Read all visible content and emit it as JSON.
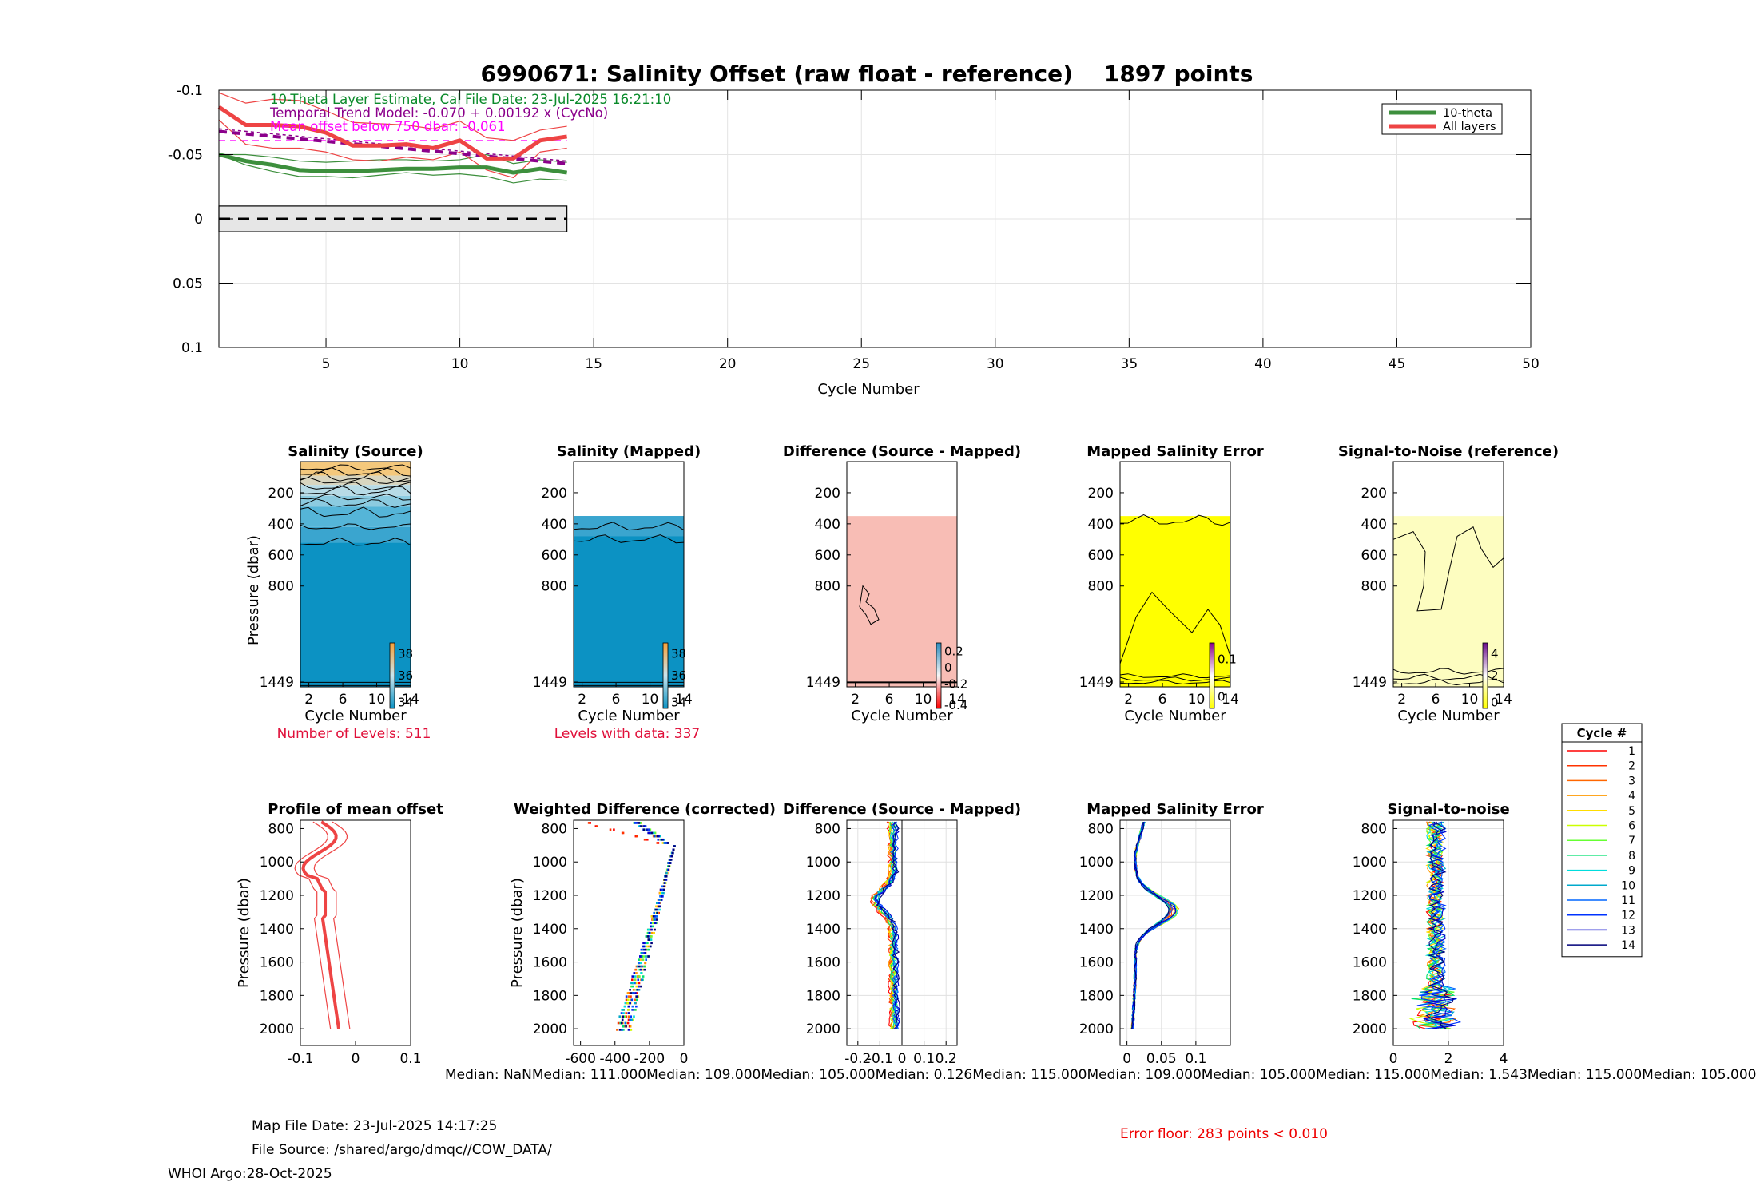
{
  "title": "6990671: Salinity Offset (raw float - reference)    1897 points",
  "top_panel": {
    "chart_data": {
      "type": "line",
      "xlabel": "Cycle Number",
      "xlim": [
        1,
        50
      ],
      "xticks": [
        5,
        10,
        15,
        20,
        25,
        30,
        35,
        40,
        45,
        50
      ],
      "ylim": [
        -0.1,
        0.1
      ],
      "y_reversed": true,
      "yticks": [
        -0.1,
        -0.05,
        0,
        0.05,
        0.1
      ],
      "ytick_labels": [
        "-0.1",
        "-0.05",
        "0",
        "0.05",
        "0.1"
      ],
      "legend": {
        "position": "top-right",
        "entries": [
          "10-theta",
          "All layers"
        ]
      },
      "annotations": [
        "10-Theta Layer Estimate, Cal File Date: 23-Jul-2025 16:21:10",
        "Temporal Trend Model: -0.070 + 0.00192 x (CycNo)",
        "Mean offset below 750 dbar: -0.061"
      ],
      "annotation_colors": [
        "#0a8a2a",
        "#8b008b",
        "#ff00ff"
      ],
      "zero_box": {
        "x": [
          1,
          14
        ],
        "y": [
          -0.01,
          0.01
        ]
      },
      "mean_offset_value": -0.061,
      "series": [
        {
          "name": "10-theta",
          "color": "#3d8f3d",
          "width": 5,
          "x": [
            1,
            2,
            3,
            4,
            5,
            6,
            7,
            8,
            9,
            10,
            11,
            12,
            13,
            14
          ],
          "values": [
            -0.05,
            -0.045,
            -0.042,
            -0.038,
            -0.037,
            -0.037,
            -0.038,
            -0.039,
            -0.039,
            -0.04,
            -0.04,
            -0.036,
            -0.039,
            -0.036
          ]
        },
        {
          "name": "10-theta upper",
          "color": "#3d8f3d",
          "width": 1.2,
          "x": [
            1,
            2,
            3,
            4,
            5,
            6,
            7,
            8,
            9,
            10,
            11,
            12,
            13,
            14
          ],
          "values": [
            -0.05,
            -0.05,
            -0.048,
            -0.045,
            -0.044,
            -0.045,
            -0.046,
            -0.046,
            -0.045,
            -0.046,
            -0.05,
            -0.043,
            -0.046,
            -0.044
          ]
        },
        {
          "name": "10-theta lower",
          "color": "#3d8f3d",
          "width": 1.2,
          "x": [
            1,
            2,
            3,
            4,
            5,
            6,
            7,
            8,
            9,
            10,
            11,
            12,
            13,
            14
          ],
          "values": [
            -0.05,
            -0.042,
            -0.037,
            -0.033,
            -0.033,
            -0.032,
            -0.034,
            -0.036,
            -0.034,
            -0.035,
            -0.033,
            -0.028,
            -0.031,
            -0.03
          ]
        },
        {
          "name": "All layers",
          "color": "#ee4444",
          "width": 5,
          "x": [
            1,
            2,
            3,
            4,
            5,
            6,
            7,
            8,
            9,
            10,
            11,
            12,
            13,
            14
          ],
          "values": [
            -0.087,
            -0.073,
            -0.073,
            -0.072,
            -0.067,
            -0.057,
            -0.057,
            -0.058,
            -0.055,
            -0.061,
            -0.047,
            -0.047,
            -0.061,
            -0.064
          ]
        },
        {
          "name": "All layers upper",
          "color": "#ee4444",
          "width": 1.2,
          "x": [
            1,
            2,
            3,
            4,
            5,
            6,
            7,
            8,
            9,
            10,
            11,
            12,
            13,
            14
          ],
          "values": [
            -0.098,
            -0.09,
            -0.093,
            -0.092,
            -0.084,
            -0.075,
            -0.074,
            -0.073,
            -0.07,
            -0.076,
            -0.063,
            -0.061,
            -0.069,
            -0.072
          ]
        },
        {
          "name": "All layers lower",
          "color": "#ee4444",
          "width": 1.2,
          "x": [
            1,
            2,
            3,
            4,
            5,
            6,
            7,
            8,
            9,
            10,
            11,
            12,
            13,
            14
          ],
          "values": [
            -0.077,
            -0.058,
            -0.055,
            -0.055,
            -0.052,
            -0.046,
            -0.045,
            -0.048,
            -0.046,
            -0.052,
            -0.038,
            -0.032,
            -0.052,
            -0.055
          ]
        },
        {
          "name": "Temporal trend",
          "color": "#8b008b",
          "width": 4,
          "dash": "10,7",
          "x": [
            1,
            14
          ],
          "values": [
            -0.068,
            -0.043
          ]
        },
        {
          "name": "Trend bound",
          "color": "#8b008b",
          "width": 1.5,
          "dash": "4,4",
          "x": [
            1,
            14
          ],
          "values": [
            -0.07,
            -0.045
          ]
        }
      ]
    }
  },
  "middle_panels": {
    "ylabel": "Pressure (dbar)",
    "xlabel": "Cycle Number",
    "yticks": [
      200,
      400,
      600,
      800,
      1449
    ],
    "ytick_labels": [
      "200",
      "400",
      "600",
      "800",
      "1449"
    ],
    "xticks": [
      2,
      6,
      10,
      14
    ],
    "xtick_labels": [
      "2",
      "6",
      "10",
      "14"
    ],
    "panels": [
      {
        "title": "Salinity (Source)",
        "type": "contour",
        "colorbar_labels": [
          "38",
          "36",
          "34"
        ],
        "note": "Number of Levels: 511"
      },
      {
        "title": "Salinity (Mapped)",
        "type": "contour",
        "colorbar_labels": [
          "38",
          "36",
          "34"
        ],
        "note": "Levels with data: 337"
      },
      {
        "title": "Difference (Source - Mapped)",
        "type": "contour",
        "colorbar_labels": [
          "0.2",
          "0",
          "-0.2",
          "-0.4"
        ],
        "note": ""
      },
      {
        "title": "Mapped Salinity Error",
        "type": "contour",
        "colorbar_labels": [
          "0.1",
          "0"
        ],
        "note": ""
      },
      {
        "title": "Signal-to-Noise (reference)",
        "type": "contour",
        "colorbar_labels": [
          "4",
          "2",
          "0"
        ],
        "note": ""
      }
    ]
  },
  "bottom_panels": {
    "ylabel": "Pressure (dbar)",
    "yticks": [
      800,
      1000,
      1200,
      1400,
      1600,
      1800,
      2000
    ],
    "ytick_labels": [
      "800",
      "1000",
      "1200",
      "1400",
      "1600",
      "1800",
      "2000"
    ],
    "panels": [
      {
        "title": "Profile of mean offset",
        "xticks": [
          -0.1,
          0,
          0.1
        ],
        "xtick_labels": [
          "-0.1",
          "0",
          "0.1"
        ],
        "xlim": [
          -0.1,
          0.1
        ],
        "grid": false
      },
      {
        "title": "Weighted Difference (corrected)",
        "xticks": [
          -600,
          -400,
          -200,
          0
        ],
        "xtick_labels": [
          "-600",
          "-400",
          "-200",
          "0"
        ],
        "xlim": [
          -640,
          0
        ],
        "grid": false
      },
      {
        "title": "Difference (Source - Mapped)",
        "xticks": [
          -0.2,
          -0.1,
          0,
          0.1,
          0.2
        ],
        "xtick_labels": [
          "-0.2",
          "-0.1",
          "0",
          "0.1",
          "0.2"
        ],
        "xlim": [
          -0.25,
          0.25
        ],
        "grid": true
      },
      {
        "title": "Mapped Salinity Error",
        "xticks": [
          0,
          0.05,
          0.1
        ],
        "xtick_labels": [
          "0",
          "0.05",
          "0.1"
        ],
        "xlim": [
          -0.01,
          0.15
        ],
        "grid": true
      },
      {
        "title": "Signal-to-noise",
        "xticks": [
          0,
          2,
          4
        ],
        "xtick_labels": [
          "0",
          "2",
          "4"
        ],
        "xlim": [
          0,
          4
        ],
        "grid": true
      }
    ],
    "medians_text": "Median:    NaNMedian: 111.000Median: 109.000Median: 105.000Median: 0.126Median: 115.000Median: 109.000Median: 105.000Median: 115.000Median: 1.543Median: 115.000Median: 105.000"
  },
  "cycle_legend": {
    "title": "Cycle #",
    "labels": [
      "1",
      "2",
      "3",
      "4",
      "5",
      "6",
      "7",
      "8",
      "9",
      "10",
      "11",
      "12",
      "13",
      "14"
    ],
    "colors": [
      "#ff0000",
      "#ff3300",
      "#ff6600",
      "#ff9900",
      "#ffdd00",
      "#ccff00",
      "#66ff33",
      "#00e070",
      "#00dddd",
      "#00aacc",
      "#0066ff",
      "#0033ff",
      "#0000cc",
      "#00007a"
    ]
  },
  "footer": {
    "map_file_date": "Map File Date: 23-Jul-2025 14:17:25",
    "file_source": "File Source: /shared/argo/dmqc//COW_DATA/",
    "whoi": "WHOI Argo:28-Oct-2025",
    "error_floor": "Error floor:   283 points < 0.010"
  }
}
